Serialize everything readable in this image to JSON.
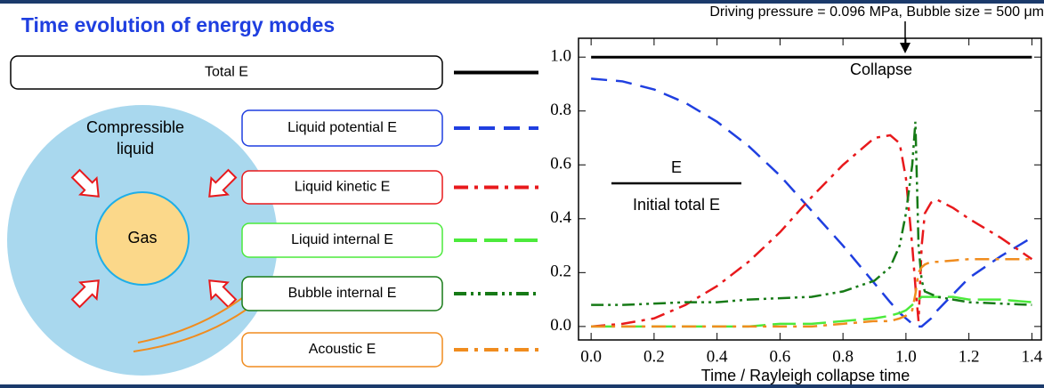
{
  "title": "Time evolution of energy modes",
  "diagram": {
    "liquid_label": "Compressible liquid",
    "gas_label": "Gas"
  },
  "chart_data": {
    "type": "line",
    "subtitle": "Driving pressure = 0.096 MPa, Bubble size = 500 μm",
    "annotation": "Collapse",
    "ylabel_numerator": "E",
    "ylabel_denominator": "Initial total E",
    "xlabel": "Time / Rayleigh collapse time",
    "x": [
      0,
      0.1,
      0.2,
      0.3,
      0.4,
      0.5,
      0.6,
      0.7,
      0.8,
      0.9,
      0.95,
      0.98,
      1.0,
      1.02,
      1.03,
      1.04,
      1.05,
      1.06,
      1.08,
      1.1,
      1.15,
      1.2,
      1.3,
      1.4
    ],
    "series": [
      {
        "name": "Total E",
        "color": "#000000",
        "dash": "solid",
        "values": [
          1,
          1,
          1,
          1,
          1,
          1,
          1,
          1,
          1,
          1,
          1,
          1,
          1,
          1,
          1,
          1,
          1,
          1,
          1,
          1,
          1,
          1,
          1,
          1
        ]
      },
      {
        "name": "Liquid potential E",
        "color": "#1f3fe0",
        "dash": "dashed",
        "values": [
          0.92,
          0.91,
          0.88,
          0.83,
          0.76,
          0.67,
          0.56,
          0.43,
          0.3,
          0.16,
          0.09,
          0.05,
          0.03,
          0.01,
          0.005,
          0,
          0,
          0.01,
          0.03,
          0.06,
          0.12,
          0.18,
          0.26,
          0.33
        ]
      },
      {
        "name": "Liquid kinetic E",
        "color": "#e8191c",
        "dash": "dash-dot",
        "values": [
          0,
          0.01,
          0.03,
          0.08,
          0.15,
          0.24,
          0.35,
          0.48,
          0.6,
          0.7,
          0.71,
          0.68,
          0.55,
          0.3,
          0.15,
          0.02,
          0.3,
          0.42,
          0.46,
          0.47,
          0.44,
          0.4,
          0.33,
          0.25
        ]
      },
      {
        "name": "Liquid internal E",
        "color": "#4cea3c",
        "dash": "long-dash",
        "values": [
          0,
          0,
          0,
          0,
          0,
          0,
          0.01,
          0.01,
          0.02,
          0.03,
          0.04,
          0.05,
          0.06,
          0.08,
          0.09,
          0.1,
          0.11,
          0.11,
          0.11,
          0.11,
          0.11,
          0.1,
          0.1,
          0.09
        ]
      },
      {
        "name": "Bubble internal E",
        "color": "#167a16",
        "dash": "dash-dot-dot",
        "values": [
          0.08,
          0.08,
          0.085,
          0.09,
          0.09,
          0.1,
          0.105,
          0.11,
          0.13,
          0.17,
          0.22,
          0.3,
          0.42,
          0.6,
          0.76,
          0.3,
          0.17,
          0.13,
          0.12,
          0.11,
          0.1,
          0.09,
          0.085,
          0.08
        ]
      },
      {
        "name": "Acoustic E",
        "color": "#f08c1e",
        "dash": "dash-dot",
        "values": [
          0,
          0,
          0,
          0,
          0,
          0,
          0,
          0,
          0.01,
          0.02,
          0.02,
          0.03,
          0.04,
          0.06,
          0.12,
          0.2,
          0.22,
          0.23,
          0.24,
          0.24,
          0.245,
          0.25,
          0.25,
          0.25
        ]
      }
    ],
    "xlim": [
      -0.04,
      1.43
    ],
    "ylim": [
      -0.05,
      1.07
    ],
    "xticks": [
      {
        "value": 0,
        "label": "0.0"
      },
      0.2,
      0.4,
      0.6,
      0.8,
      {
        "value": 1,
        "label": "1.0"
      },
      1.2,
      1.4
    ],
    "yticks": [
      {
        "value": 0,
        "label": "0.0"
      },
      0.2,
      0.4,
      0.6,
      0.8,
      {
        "value": 1,
        "label": "1.0"
      }
    ]
  }
}
